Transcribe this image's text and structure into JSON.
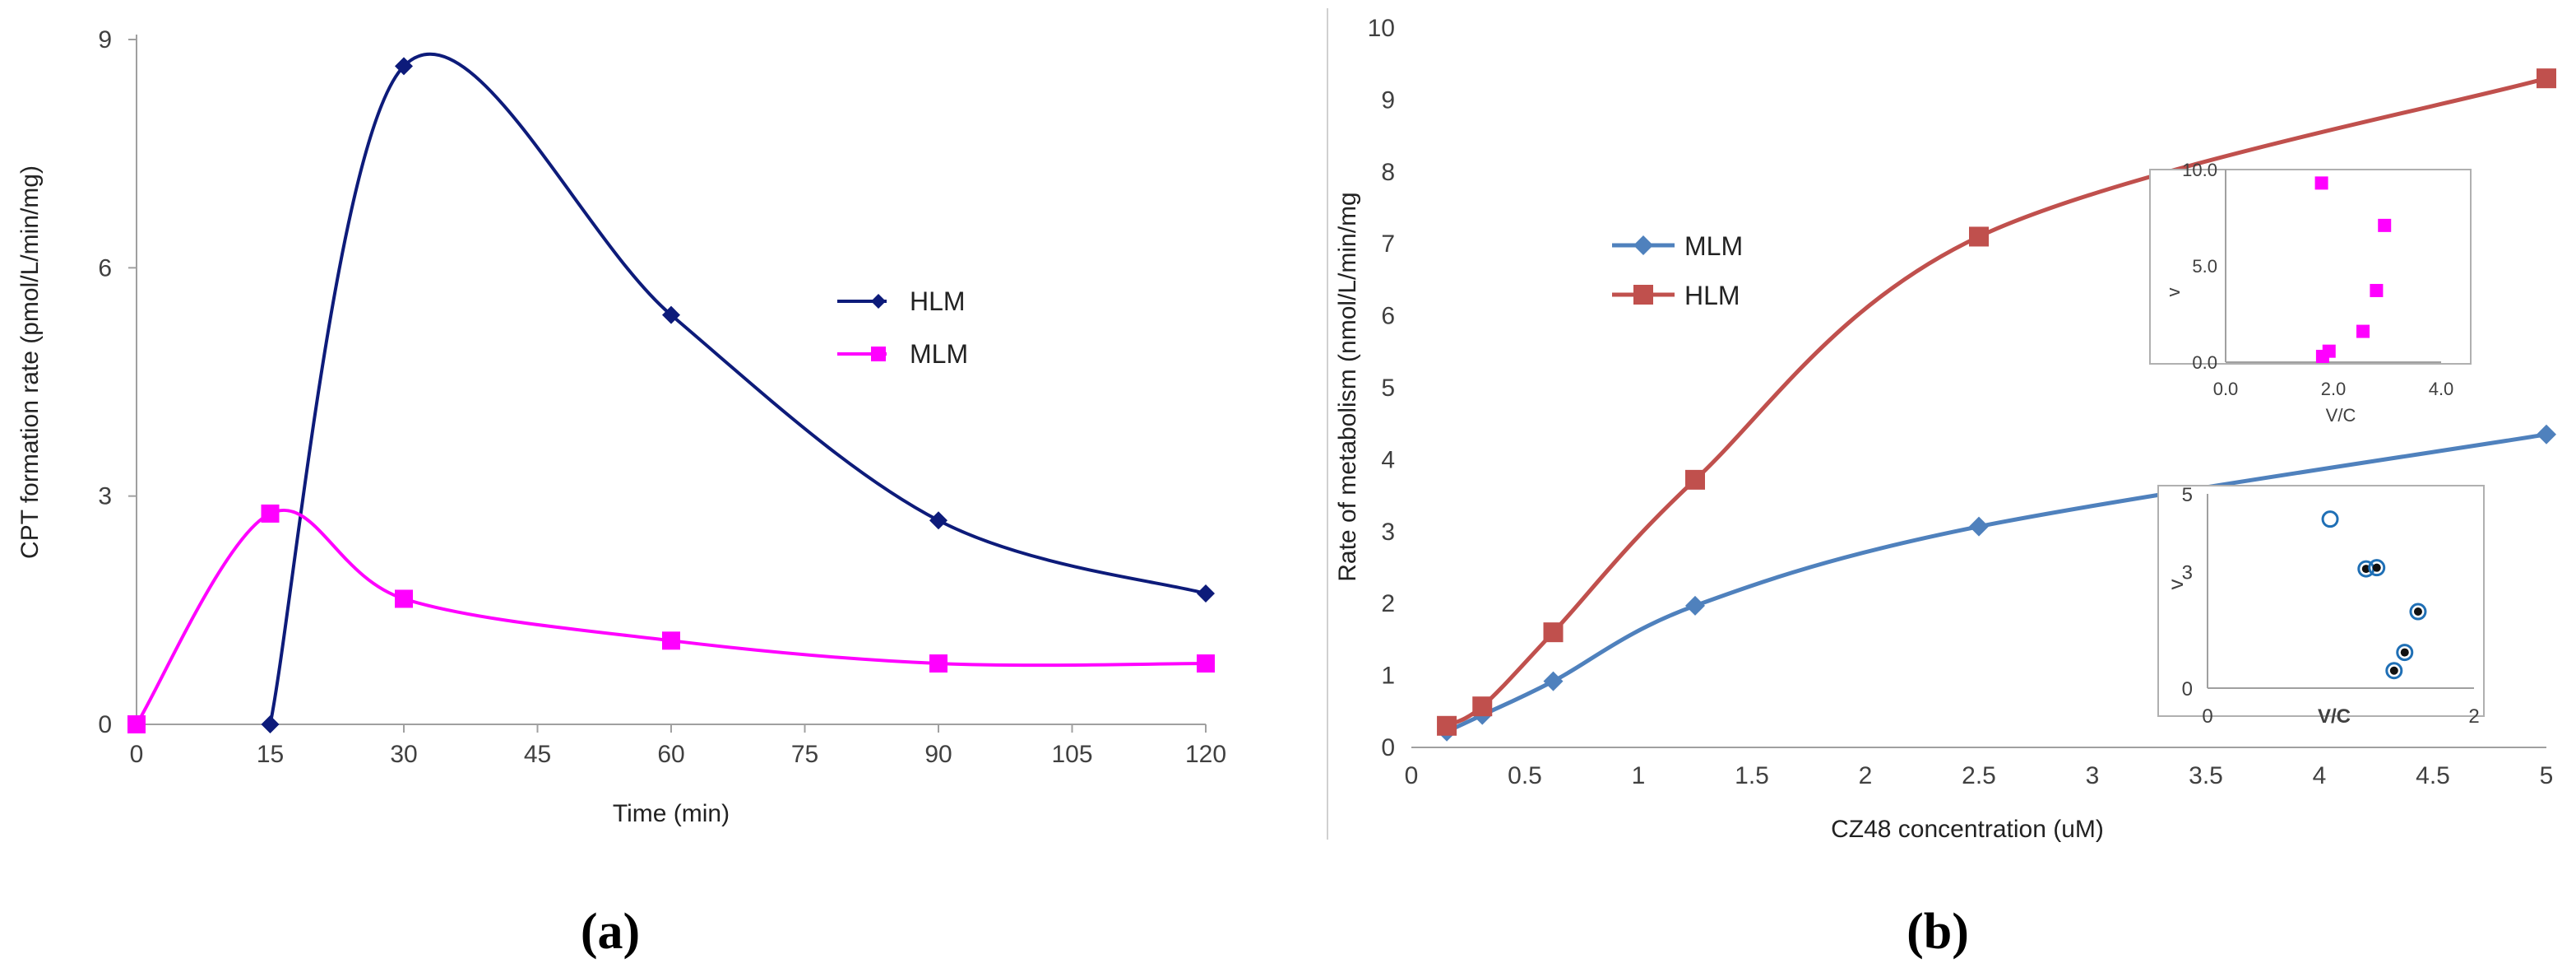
{
  "chart_data": [
    {
      "type": "line",
      "panel": "(a)",
      "xlabel": "Time  (min)",
      "ylabel": "CPT formation rate  (pmol/L/min/mg)",
      "xlim": [
        0,
        120
      ],
      "ylim": [
        0,
        9
      ],
      "xticks": [
        0,
        15,
        30,
        45,
        60,
        75,
        90,
        105,
        120
      ],
      "yticks": [
        0,
        3,
        6,
        9
      ],
      "legend_position": "right",
      "series": [
        {
          "name": "HLM",
          "color": "#0d1b7a",
          "marker": "diamond",
          "x": [
            15,
            30,
            60,
            90,
            120
          ],
          "y": [
            0,
            8.65,
            5.38,
            2.68,
            1.72
          ]
        },
        {
          "name": "MLM",
          "color": "#ff00ff",
          "marker": "square",
          "x": [
            0,
            15,
            30,
            60,
            90,
            120
          ],
          "y": [
            0,
            2.77,
            1.65,
            1.1,
            0.8,
            0.8
          ]
        }
      ]
    },
    {
      "type": "line",
      "panel": "(b)",
      "xlabel": "CZ48 concentration (uM)",
      "ylabel": "Rate of metabolism (nmol/L/min/mg",
      "xlim": [
        0,
        5
      ],
      "ylim": [
        0,
        10
      ],
      "xticks": [
        "0",
        "0.5",
        "1",
        "1.5",
        "2",
        "2.5",
        "3",
        "3.5",
        "4",
        "4.5",
        "5"
      ],
      "yticks": [
        "0",
        "1",
        "2",
        "3",
        "4",
        "5",
        "6",
        "7",
        "8",
        "9",
        "10"
      ],
      "legend_position": "upper-left",
      "series": [
        {
          "name": "MLM",
          "color": "#4f81bd",
          "marker": "diamond",
          "x": [
            0.156,
            0.3125,
            0.625,
            1.25,
            2.5,
            5
          ],
          "y": [
            0.22,
            0.45,
            0.92,
            1.97,
            3.07,
            4.35
          ]
        },
        {
          "name": "HLM",
          "color": "#c0504d",
          "marker": "square",
          "x": [
            0.156,
            0.3125,
            0.625,
            1.25,
            2.5,
            5
          ],
          "y": [
            0.3,
            0.57,
            1.6,
            3.72,
            7.1,
            9.3
          ]
        }
      ]
    },
    {
      "type": "scatter",
      "panel": "(b) inset top",
      "xlabel": "V/C",
      "ylabel": "v",
      "xlim": [
        0,
        4
      ],
      "ylim": [
        0,
        10
      ],
      "xticks": [
        "0.0",
        "2.0",
        "4.0"
      ],
      "yticks": [
        "0.0",
        "5.0",
        "10.0"
      ],
      "color": "#ff00ff",
      "marker": "square",
      "x": [
        1.8,
        1.92,
        2.55,
        2.8,
        2.95,
        1.78
      ],
      "y": [
        0.3,
        0.57,
        1.6,
        3.72,
        7.1,
        9.3
      ]
    },
    {
      "type": "scatter",
      "panel": "(b) inset bottom",
      "xlabel": "V/C",
      "ylabel": "v",
      "xlim": [
        0,
        2
      ],
      "ylim": [
        0,
        5
      ],
      "xticks": [
        "0",
        "2"
      ],
      "yticks": [
        "0",
        "3",
        "5"
      ],
      "color": "#1f6fb5",
      "marker": "open-circle",
      "x": [
        1.4,
        1.48,
        1.58,
        1.19,
        1.27,
        0.92
      ],
      "y": [
        0.45,
        0.92,
        1.97,
        3.07,
        3.1,
        4.35
      ]
    }
  ],
  "labels": {
    "panel_a": "(a)",
    "panel_b": "(b)"
  }
}
